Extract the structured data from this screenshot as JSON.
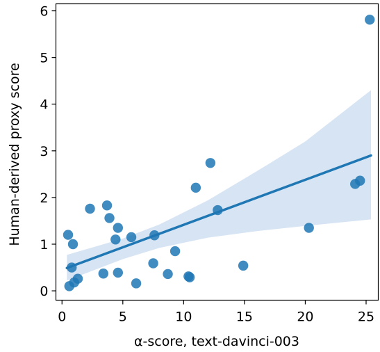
{
  "chart_data": {
    "type": "scatter",
    "xlabel": "α-score, text-davinci-003",
    "ylabel": "Human-derived proxy score",
    "xlim": [
      -0.5,
      26
    ],
    "ylim": [
      -0.2,
      6.15
    ],
    "xticks": [
      0,
      5,
      10,
      15,
      20,
      25
    ],
    "yticks": [
      0,
      1,
      2,
      3,
      4,
      5,
      6
    ],
    "grid": false,
    "colors": {
      "points": "#1f77b4",
      "line": "#1f77b4",
      "band": "#c6d9ee"
    },
    "series": [
      {
        "points": [
          {
            "x": 0.5,
            "y": 1.2
          },
          {
            "x": 0.6,
            "y": 0.1
          },
          {
            "x": 0.8,
            "y": 0.5
          },
          {
            "x": 0.9,
            "y": 1.0
          },
          {
            "x": 1.0,
            "y": 0.18
          },
          {
            "x": 1.3,
            "y": 0.26
          },
          {
            "x": 2.3,
            "y": 1.76
          },
          {
            "x": 3.4,
            "y": 0.37
          },
          {
            "x": 3.7,
            "y": 1.83
          },
          {
            "x": 3.9,
            "y": 1.56
          },
          {
            "x": 4.4,
            "y": 1.1
          },
          {
            "x": 4.6,
            "y": 1.35
          },
          {
            "x": 4.6,
            "y": 0.39
          },
          {
            "x": 5.7,
            "y": 1.15
          },
          {
            "x": 6.1,
            "y": 0.16
          },
          {
            "x": 7.5,
            "y": 0.59
          },
          {
            "x": 7.6,
            "y": 1.19
          },
          {
            "x": 8.7,
            "y": 0.36
          },
          {
            "x": 9.3,
            "y": 0.85
          },
          {
            "x": 10.4,
            "y": 0.31
          },
          {
            "x": 10.5,
            "y": 0.29
          },
          {
            "x": 11.0,
            "y": 2.21
          },
          {
            "x": 12.2,
            "y": 2.74
          },
          {
            "x": 12.8,
            "y": 1.73
          },
          {
            "x": 14.9,
            "y": 0.54
          },
          {
            "x": 20.3,
            "y": 1.35
          },
          {
            "x": 24.1,
            "y": 2.29
          },
          {
            "x": 24.5,
            "y": 2.36
          },
          {
            "x": 25.3,
            "y": 5.81
          }
        ]
      }
    ],
    "regression": {
      "x0": 0.4,
      "y0": 0.49,
      "x1": 25.4,
      "y1": 2.9
    },
    "confidence_band": [
      {
        "x": 0.4,
        "lo": 0.22,
        "hi": 0.77
      },
      {
        "x": 5,
        "lo": 0.68,
        "hi": 1.12
      },
      {
        "x": 8,
        "lo": 0.92,
        "hi": 1.42
      },
      {
        "x": 12,
        "lo": 1.14,
        "hi": 1.94
      },
      {
        "x": 16,
        "lo": 1.28,
        "hi": 2.56
      },
      {
        "x": 20,
        "lo": 1.39,
        "hi": 3.2
      },
      {
        "x": 25.4,
        "lo": 1.53,
        "hi": 4.3
      }
    ]
  }
}
